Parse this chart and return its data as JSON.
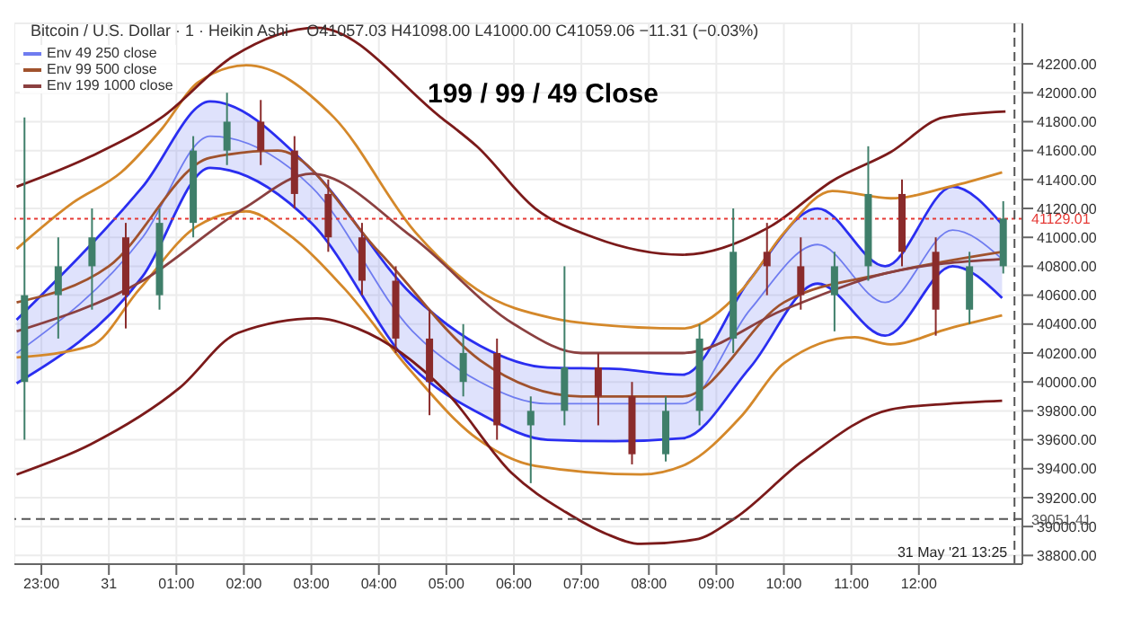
{
  "chart_data": {
    "type": "candlestick",
    "title": "199 / 99 / 49 Close",
    "annotations": [
      "Bitcoin / U.S. Dollar · 1 · Heikin Ashi",
      "O41057.03 H41098.00 L41000.00 C41059.06 −11.31 (−0.03%)"
    ],
    "x": [
      "2021-05-30T22:45",
      "2021-05-30T23:15",
      "2021-05-30T23:45",
      "2021-05-31T00:15",
      "2021-05-31T00:45",
      "2021-05-31T01:15",
      "2021-05-31T01:45",
      "2021-05-31T02:15",
      "2021-05-31T02:45",
      "2021-05-31T03:15",
      "2021-05-31T03:45",
      "2021-05-31T04:15",
      "2021-05-31T04:45",
      "2021-05-31T05:15",
      "2021-05-31T05:45",
      "2021-05-31T06:15",
      "2021-05-31T06:45",
      "2021-05-31T07:15",
      "2021-05-31T07:45",
      "2021-05-31T08:15",
      "2021-05-31T08:45",
      "2021-05-31T09:15",
      "2021-05-31T09:45",
      "2021-05-31T10:15",
      "2021-05-31T10:45",
      "2021-05-31T11:15",
      "2021-05-31T11:45",
      "2021-05-31T12:15",
      "2021-05-31T12:45",
      "2021-05-31T13:15"
    ],
    "ohlc": [
      [
        40000,
        41830,
        39600,
        40600
      ],
      [
        40600,
        41000,
        40300,
        40800
      ],
      [
        40800,
        41200,
        40500,
        41000
      ],
      [
        41000,
        41100,
        40370,
        40600
      ],
      [
        40600,
        41200,
        40500,
        41100
      ],
      [
        41100,
        41700,
        41000,
        41600
      ],
      [
        41600,
        42000,
        41500,
        41800
      ],
      [
        41800,
        41950,
        41500,
        41600
      ],
      [
        41600,
        41700,
        41200,
        41300
      ],
      [
        41300,
        41400,
        40900,
        41000
      ],
      [
        41000,
        41100,
        40600,
        40700
      ],
      [
        40700,
        40800,
        40200,
        40300
      ],
      [
        40300,
        40500,
        39770,
        40000
      ],
      [
        40000,
        40400,
        39900,
        40200
      ],
      [
        40200,
        40300,
        39600,
        39700
      ],
      [
        39700,
        39900,
        39300,
        39800
      ],
      [
        39800,
        40800,
        39700,
        40100
      ],
      [
        40100,
        40200,
        39700,
        39900
      ],
      [
        39900,
        40000,
        39430,
        39500
      ],
      [
        39500,
        39900,
        39450,
        39800
      ],
      [
        39800,
        40400,
        39700,
        40300
      ],
      [
        40300,
        41200,
        40200,
        40900
      ],
      [
        40900,
        41100,
        40600,
        40800
      ],
      [
        40800,
        41000,
        40500,
        40600
      ],
      [
        40600,
        40900,
        40350,
        40800
      ],
      [
        40800,
        41630,
        40700,
        41300
      ],
      [
        41300,
        41400,
        40800,
        40900
      ],
      [
        40900,
        41000,
        40320,
        40500
      ],
      [
        40500,
        40900,
        40400,
        40800
      ],
      [
        40800,
        41250,
        40750,
        41130
      ]
    ],
    "series": [
      {
        "type": "line",
        "name": "Env 49 250 close",
        "color": "#6f7cf0",
        "x": [
          "2021-05-30T22:38",
          "2021-05-31T00:30",
          "2021-05-31T01:30",
          "2021-05-31T03:00",
          "2021-05-31T04:30",
          "2021-05-31T05:30",
          "2021-05-31T06:30",
          "2021-05-31T07:30",
          "2021-05-31T08:30",
          "2021-05-31T09:30",
          "2021-05-31T10:30",
          "2021-05-31T11:30",
          "2021-05-31T12:30",
          "2021-05-31T13:14"
        ],
        "values": [
          40200,
          41000,
          41700,
          41350,
          40350,
          40000,
          39850,
          39850,
          39850,
          40500,
          40950,
          40550,
          41050,
          40850
        ],
        "lower": [
          39990,
          40730,
          41480,
          41100,
          40100,
          39780,
          39600,
          39590,
          39610,
          40100,
          40680,
          40320,
          40800,
          40580
        ],
        "upper": [
          40430,
          41350,
          41940,
          41470,
          40600,
          40250,
          40100,
          40090,
          40050,
          40710,
          41200,
          40800,
          41350,
          41090
        ]
      },
      {
        "type": "line",
        "color": "#2a2ef0",
        "x": [
          "2021-05-30T22:38",
          "2021-05-31T00:30",
          "2021-05-31T01:30",
          "2021-05-31T03:00",
          "2021-05-31T04:30",
          "2021-05-31T05:30",
          "2021-05-31T06:30",
          "2021-05-31T07:30",
          "2021-05-31T08:30",
          "2021-05-31T09:30",
          "2021-05-31T10:30",
          "2021-05-31T11:30",
          "2021-05-31T12:30",
          "2021-05-31T13:14"
        ],
        "values": [
          39990,
          40730,
          41480,
          41100,
          40100,
          39780,
          39600,
          39590,
          39610,
          40100,
          40680,
          40320,
          40800,
          40580
        ]
      },
      {
        "type": "line",
        "color": "#2a2ef0",
        "x": [
          "2021-05-30T22:38",
          "2021-05-31T00:30",
          "2021-05-31T01:30",
          "2021-05-31T03:00",
          "2021-05-31T04:30",
          "2021-05-31T05:30",
          "2021-05-31T06:30",
          "2021-05-31T07:30",
          "2021-05-31T08:30",
          "2021-05-31T09:30",
          "2021-05-31T10:30",
          "2021-05-31T11:30",
          "2021-05-31T12:30",
          "2021-05-31T13:14"
        ],
        "values": [
          40430,
          41350,
          41940,
          41470,
          40600,
          40250,
          40100,
          40090,
          40050,
          40710,
          41200,
          40800,
          41350,
          41090
        ]
      },
      {
        "type": "line",
        "name": "Env 99 500 close",
        "color": "#a0522d",
        "x": [
          "2021-05-30T22:38",
          "2021-05-31T00:00",
          "2021-05-31T01:30",
          "2021-05-31T02:30",
          "2021-05-31T04:00",
          "2021-05-31T05:30",
          "2021-05-31T07:00",
          "2021-05-31T08:30",
          "2021-05-31T10:00",
          "2021-05-31T11:30",
          "2021-05-31T13:14"
        ],
        "values": [
          40550,
          40800,
          41550,
          41600,
          40900,
          40150,
          39900,
          39900,
          40550,
          40750,
          40900
        ]
      },
      {
        "type": "line",
        "color": "#d4882a",
        "x": [
          "2021-05-30T22:38",
          "2021-05-30T23:28",
          "2021-05-31T00:11",
          "2021-05-31T00:47",
          "2021-05-31T01:19",
          "2021-05-31T02:02",
          "2021-05-31T03:20",
          "2021-05-31T04:33",
          "2021-05-31T05:27",
          "2021-05-31T06:35",
          "2021-05-31T07:11",
          "2021-05-31T08:30",
          "2021-05-31T09:23",
          "2021-05-31T10:00",
          "2021-05-31T10:43",
          "2021-05-31T11:35",
          "2021-05-31T12:27",
          "2021-05-31T13:14"
        ],
        "values": [
          40920,
          41240,
          41450,
          41750,
          42070,
          42190,
          41830,
          41030,
          40640,
          40440,
          40400,
          40370,
          40640,
          41030,
          41320,
          41270,
          41350,
          41450
        ]
      },
      {
        "type": "line",
        "color": "#d4882a",
        "x": [
          "2021-05-30T22:38",
          "2021-05-30T23:44",
          "2021-05-31T00:27",
          "2021-05-31T01:19",
          "2021-05-31T02:02",
          "2021-05-31T02:38",
          "2021-05-31T03:30",
          "2021-05-31T04:28",
          "2021-05-31T05:27",
          "2021-05-31T06:19",
          "2021-05-31T07:53",
          "2021-05-31T08:30",
          "2021-05-31T09:23",
          "2021-05-31T10:00",
          "2021-05-31T11:03",
          "2021-05-31T11:35",
          "2021-05-31T12:27",
          "2021-05-31T13:14"
        ],
        "values": [
          40170,
          40250,
          40640,
          41080,
          41180,
          41030,
          40640,
          40080,
          39610,
          39420,
          39360,
          39420,
          39770,
          40130,
          40310,
          40260,
          40370,
          40460
        ]
      },
      {
        "type": "line",
        "name": "Env 199 1000 close",
        "color": "#8b4040",
        "x": [
          "2021-05-30T22:38",
          "2021-05-31T00:30",
          "2021-05-31T02:00",
          "2021-05-31T03:00",
          "2021-05-31T04:30",
          "2021-05-31T06:00",
          "2021-05-31T07:00",
          "2021-05-31T08:30",
          "2021-05-31T10:00",
          "2021-05-31T11:30",
          "2021-05-31T13:14"
        ],
        "values": [
          40350,
          40700,
          41200,
          41440,
          41000,
          40400,
          40200,
          40200,
          40500,
          40750,
          40850
        ]
      },
      {
        "type": "line",
        "color": "#7b1a1a",
        "x": [
          "2021-05-30T22:38",
          "2021-05-30T23:44",
          "2021-05-31T00:47",
          "2021-05-31T01:50",
          "2021-05-31T03:05",
          "2021-05-31T04:55",
          "2021-05-31T05:27",
          "2021-05-31T06:19",
          "2021-05-31T07:11",
          "2021-05-31T08:30",
          "2021-05-31T09:49",
          "2021-05-31T10:43",
          "2021-05-31T11:35",
          "2021-05-31T12:22",
          "2021-05-31T13:17"
        ],
        "values": [
          41350,
          41560,
          41830,
          42250,
          42450,
          41830,
          41630,
          41200,
          41000,
          40880,
          41080,
          41390,
          41590,
          41830,
          41870
        ]
      },
      {
        "type": "line",
        "color": "#7b1a1a",
        "x": [
          "2021-05-30T22:38",
          "2021-05-30T23:44",
          "2021-05-31T01:03",
          "2021-05-31T01:55",
          "2021-05-31T03:05",
          "2021-05-31T03:41",
          "2021-05-31T05:00",
          "2021-05-31T05:58",
          "2021-05-31T06:46",
          "2021-05-31T07:22",
          "2021-05-31T07:53",
          "2021-05-31T08:41",
          "2021-05-31T09:17",
          "2021-05-31T10:16",
          "2021-05-31T11:35",
          "2021-05-31T12:27",
          "2021-05-31T13:14"
        ],
        "values": [
          39360,
          39570,
          39960,
          40340,
          40440,
          40370,
          39930,
          39370,
          39100,
          38950,
          38880,
          38910,
          39060,
          39450,
          39810,
          39850,
          39870
        ]
      }
    ],
    "xlim": [
      "2021-05-30T22:36",
      "2021-05-31T13:32"
    ],
    "ylim": [
      38740,
      42480
    ],
    "xticks": [
      {
        "value": "2021-05-30T23:00",
        "label": "23:00"
      },
      {
        "value": "2021-05-31T00:00",
        "label": "31"
      },
      {
        "value": "2021-05-31T01:00",
        "label": "01:00"
      },
      {
        "value": "2021-05-31T02:00",
        "label": "02:00"
      },
      {
        "value": "2021-05-31T03:00",
        "label": "03:00"
      },
      {
        "value": "2021-05-31T04:00",
        "label": "04:00"
      },
      {
        "value": "2021-05-31T05:00",
        "label": "05:00"
      },
      {
        "value": "2021-05-31T06:00",
        "label": "06:00"
      },
      {
        "value": "2021-05-31T07:00",
        "label": "07:00"
      },
      {
        "value": "2021-05-31T08:00",
        "label": "08:00"
      },
      {
        "value": "2021-05-31T09:00",
        "label": "09:00"
      },
      {
        "value": "2021-05-31T10:00",
        "label": "10:00"
      },
      {
        "value": "2021-05-31T11:00",
        "label": "11:00"
      },
      {
        "value": "2021-05-31T12:00",
        "label": "12:00"
      }
    ],
    "yticks": [
      {
        "value": 38800,
        "label": "38800.00"
      },
      {
        "value": 39000,
        "label": "39000.00"
      },
      {
        "value": 39200,
        "label": "39200.00"
      },
      {
        "value": 39400,
        "label": "39400.00"
      },
      {
        "value": 39600,
        "label": "39600.00"
      },
      {
        "value": 39800,
        "label": "39800.00"
      },
      {
        "value": 40000,
        "label": "40000.00"
      },
      {
        "value": 40200,
        "label": "40200.00"
      },
      {
        "value": 40400,
        "label": "40400.00"
      },
      {
        "value": 40600,
        "label": "40600.00"
      },
      {
        "value": 40800,
        "label": "40800.00"
      },
      {
        "value": 41000,
        "label": "41000.00"
      },
      {
        "value": 41200,
        "label": "41200.00"
      },
      {
        "value": 41400,
        "label": "41400.00"
      },
      {
        "value": 41600,
        "label": "41600.00"
      },
      {
        "value": 41800,
        "label": "41800.00"
      },
      {
        "value": 42000,
        "label": "42000.00"
      },
      {
        "value": 42200,
        "label": "42200.00"
      }
    ],
    "ref_lines": [
      {
        "axis": "y",
        "value": 41129.01,
        "label": "41129.01",
        "color": "#e53935",
        "line_style": "dotted"
      },
      {
        "axis": "y",
        "value": 39051.41,
        "label": "39051.41",
        "color": "#555555",
        "line_style": "dashed"
      },
      {
        "axis": "x",
        "value": "2021-05-31T13:25",
        "label": "31 May '21 13:25",
        "color": "#555555",
        "line_style": "dashed"
      }
    ],
    "grid": true,
    "legend": "top left"
  }
}
